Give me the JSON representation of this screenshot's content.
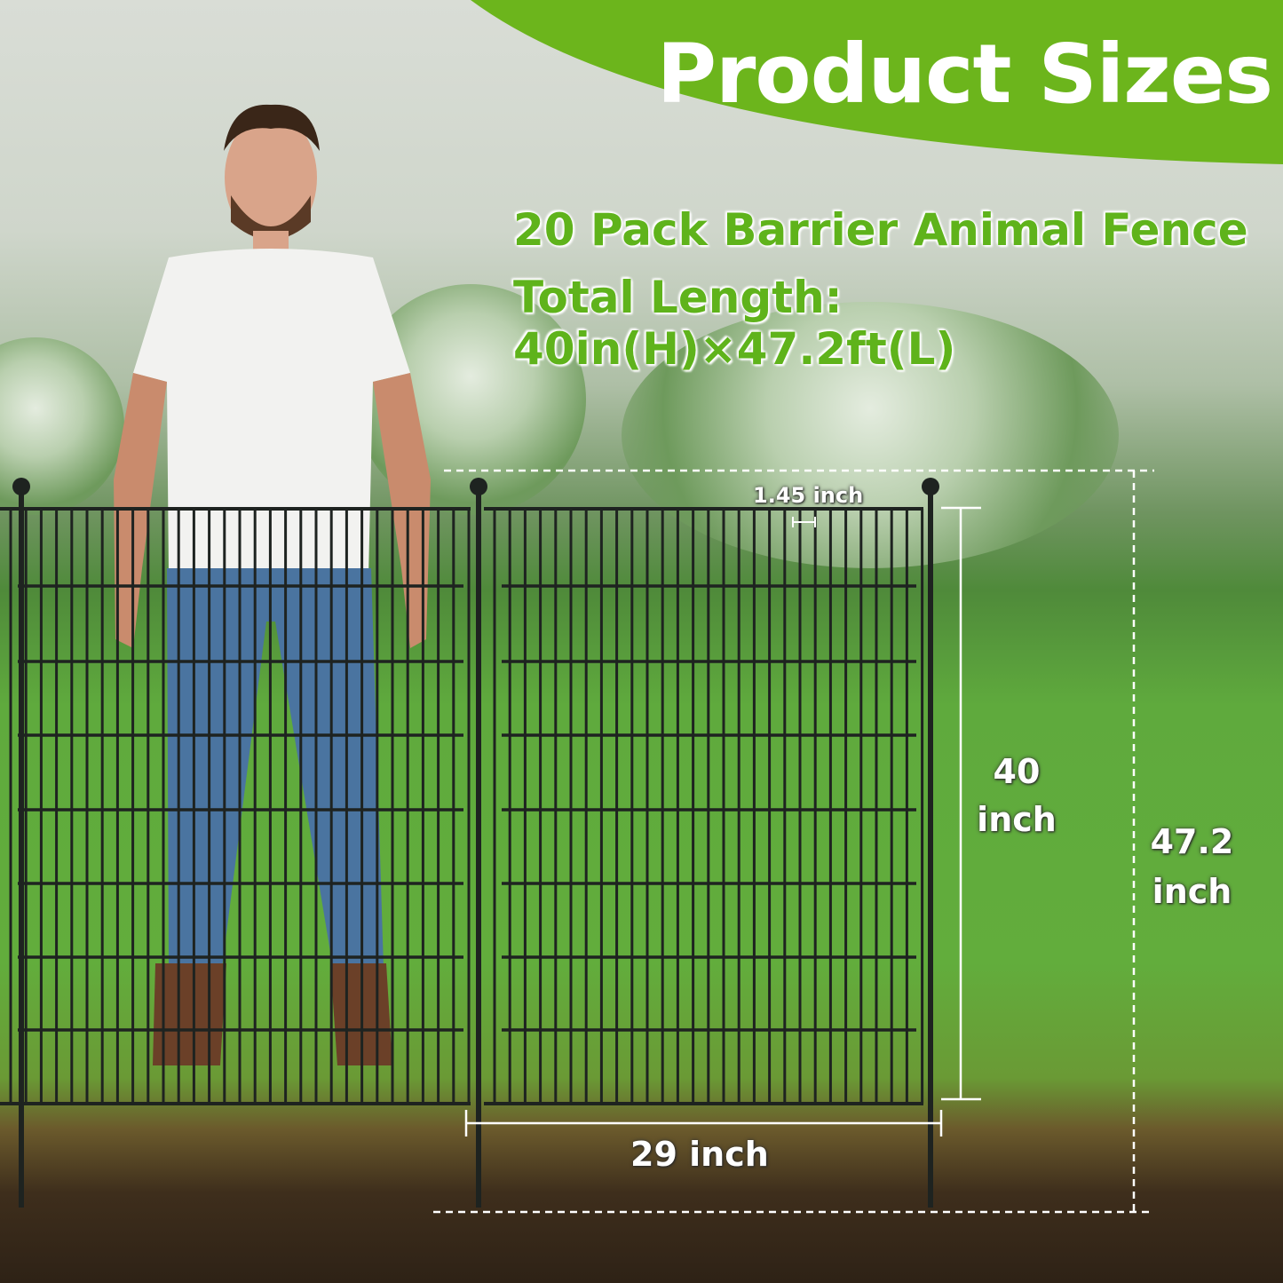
{
  "banner": {
    "title": "Product Sizes",
    "color": "#6cb51c"
  },
  "headline": {
    "line1": "20 Pack Barrier Animal Fence",
    "line2": "Total Length: 40in(H)×47.2ft(L)",
    "color": "#5fb31b"
  },
  "dimensions": {
    "bar_spacing": "1.45 inch",
    "panel_height_value": "40",
    "panel_height_unit": "inch",
    "total_height_value": "47.2",
    "total_height_unit": "inch",
    "panel_width": "29 inch"
  }
}
